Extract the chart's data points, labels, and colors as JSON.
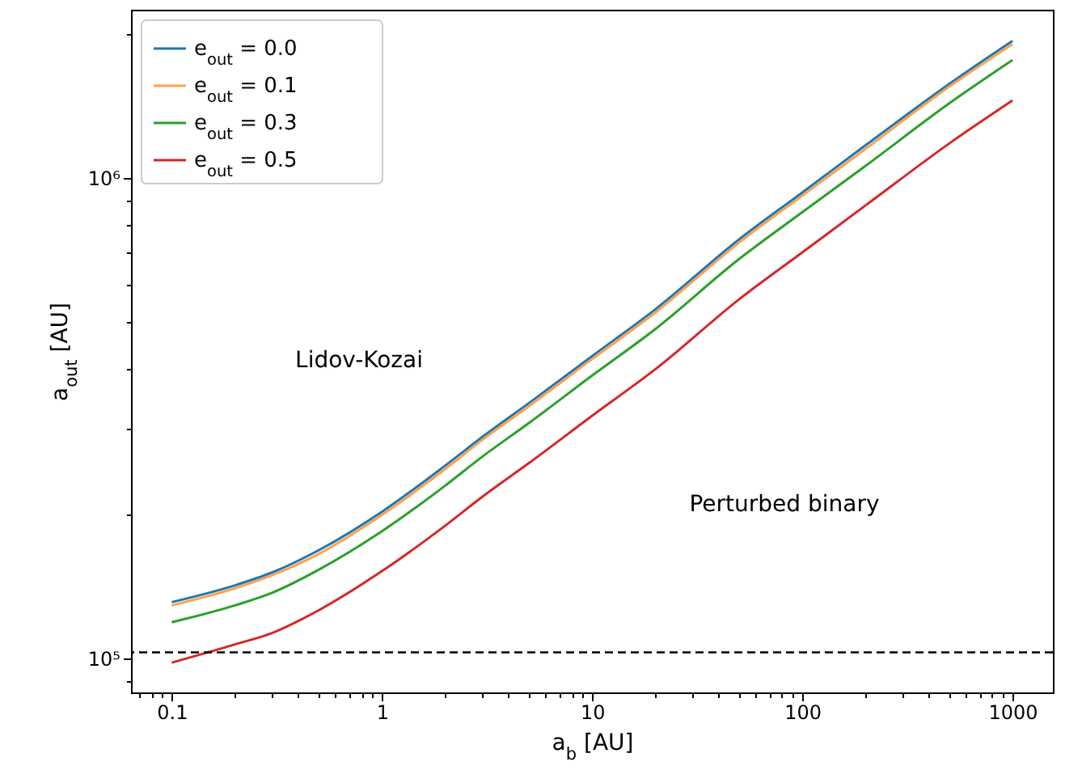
{
  "chart_data": {
    "type": "line",
    "xlabel": "a$_{b}$ [AU]",
    "ylabel": "a$_{out}$ [AU]",
    "x": [
      0.1,
      0.2,
      0.3,
      0.5,
      1,
      2,
      3,
      5,
      10,
      20,
      50,
      100,
      200,
      500,
      1000
    ],
    "series": [
      {
        "name": "e$_{out}$ = 0.0",
        "color": "#1f77b4",
        "values": [
          131000,
          142000,
          151000,
          168000,
          202000,
          252000,
          289000,
          340000,
          426000,
          533000,
          745000,
          933000,
          1170000,
          1570000,
          1930000
        ]
      },
      {
        "name": "e$_{out}$ = 0.1",
        "color": "#ffa04c",
        "values": [
          129000,
          140000,
          149000,
          165000,
          199000,
          248000,
          285000,
          335000,
          420000,
          525000,
          734000,
          919000,
          1150000,
          1550000,
          1900000
        ]
      },
      {
        "name": "e$_{out}$ = 0.3",
        "color": "#2ca02c",
        "values": [
          119000,
          129000,
          137000,
          153000,
          184000,
          229000,
          263000,
          309000,
          388000,
          485000,
          678000,
          849000,
          1060000,
          1430000,
          1760000
        ]
      },
      {
        "name": "e$_{out}$ = 0.5",
        "color": "#d62728",
        "values": [
          98000,
          107000,
          113000,
          126000,
          152000,
          189000,
          217000,
          255000,
          320000,
          400000,
          559000,
          700000,
          877000,
          1180000,
          1450000
        ]
      }
    ],
    "log": "xy",
    "xlim": [
      0.064,
      1556
    ],
    "ylim": [
      85000,
      2240000
    ],
    "xticks": [
      {
        "value": 0.07,
        "label": null
      },
      {
        "value": 0.08,
        "label": null
      },
      {
        "value": 0.09,
        "label": null
      },
      0.1,
      {
        "value": 0.2,
        "label": null
      },
      {
        "value": 0.3,
        "label": null
      },
      {
        "value": 0.4,
        "label": null
      },
      {
        "value": 0.5,
        "label": null
      },
      {
        "value": 0.6,
        "label": null
      },
      {
        "value": 0.7,
        "label": null
      },
      {
        "value": 0.8,
        "label": null
      },
      {
        "value": 0.9,
        "label": null
      },
      1,
      {
        "value": 2,
        "label": null
      },
      {
        "value": 3,
        "label": null
      },
      {
        "value": 4,
        "label": null
      },
      {
        "value": 5,
        "label": null
      },
      {
        "value": 6,
        "label": null
      },
      {
        "value": 7,
        "label": null
      },
      {
        "value": 8,
        "label": null
      },
      {
        "value": 9,
        "label": null
      },
      10,
      {
        "value": 20,
        "label": null
      },
      {
        "value": 30,
        "label": null
      },
      {
        "value": 40,
        "label": null
      },
      {
        "value": 50,
        "label": null
      },
      {
        "value": 60,
        "label": null
      },
      {
        "value": 70,
        "label": null
      },
      {
        "value": 80,
        "label": null
      },
      {
        "value": 90,
        "label": null
      },
      100,
      {
        "value": 200,
        "label": null
      },
      {
        "value": 300,
        "label": null
      },
      {
        "value": 400,
        "label": null
      },
      {
        "value": 500,
        "label": null
      },
      {
        "value": 600,
        "label": null
      },
      {
        "value": 700,
        "label": null
      },
      {
        "value": 800,
        "label": null
      },
      {
        "value": 900,
        "label": null
      },
      1000
    ],
    "yticks": [
      {
        "value": 90000,
        "label": null
      },
      {
        "value": 100000,
        "label": "10⁵"
      },
      {
        "value": 200000,
        "label": null
      },
      {
        "value": 300000,
        "label": null
      },
      {
        "value": 400000,
        "label": null
      },
      {
        "value": 500000,
        "label": null
      },
      {
        "value": 600000,
        "label": null
      },
      {
        "value": 700000,
        "label": null
      },
      {
        "value": 800000,
        "label": null
      },
      {
        "value": 900000,
        "label": null
      },
      {
        "value": 1000000,
        "label": "10⁶"
      },
      {
        "value": 2000000,
        "label": null
      }
    ],
    "ref_lines": [
      {
        "axis": "y",
        "value": 103000,
        "color": "#000000",
        "line_style": "dashed"
      }
    ],
    "annotations": [
      "Lidov-Kozai",
      "Perturbed binary"
    ],
    "legend": "top left",
    "grid": false,
    "line_style": "solid",
    "marker": "none"
  }
}
